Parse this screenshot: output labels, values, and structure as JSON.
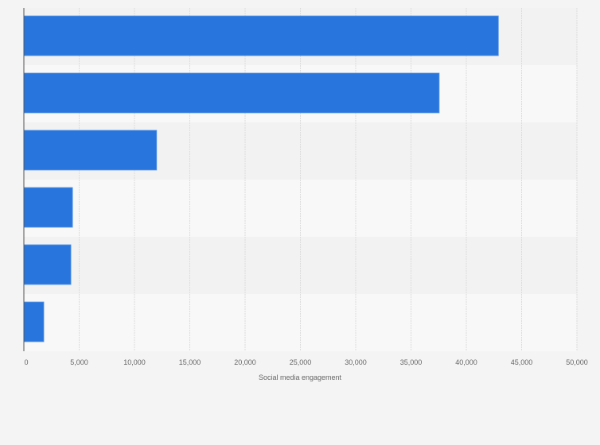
{
  "chart_data": {
    "type": "bar",
    "orientation": "horizontal",
    "title": "",
    "categories": [
      "",
      "",
      "",
      "",
      "",
      ""
    ],
    "values": [
      42900,
      37550,
      12000,
      4400,
      4250,
      1800
    ],
    "xlabel": "Social media engagement",
    "ylabel": "",
    "xlim": [
      0,
      50000
    ],
    "xticks": [
      0,
      5000,
      10000,
      15000,
      20000,
      25000,
      30000,
      35000,
      40000,
      45000,
      50000
    ],
    "xtick_labels": [
      "0",
      "5,000",
      "10,000",
      "15,000",
      "20,000",
      "25,000",
      "30,000",
      "35,000",
      "40,000",
      "45,000",
      "50,000"
    ],
    "grid": true,
    "legend": "none",
    "bar_color": "#2876dd"
  }
}
